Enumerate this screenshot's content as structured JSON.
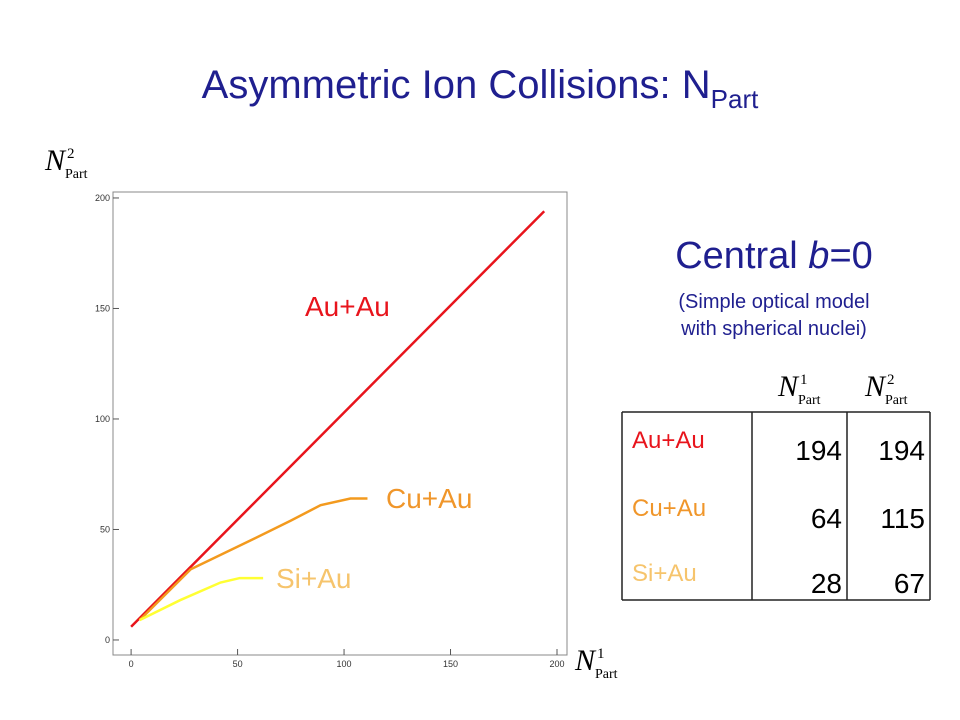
{
  "title": {
    "text": "Asymmetric Ion Collisions: N",
    "sub": "Part"
  },
  "chart_data": {
    "type": "line",
    "x_label": {
      "symbol": "N",
      "sup": "1",
      "sub": "Part"
    },
    "y_label": {
      "symbol": "N",
      "sup": "2",
      "sub": "Part"
    },
    "xlim": [
      -8.5,
      204.7
    ],
    "ylim": [
      -6.8,
      202.7
    ],
    "xticks": [
      0,
      50,
      100,
      150,
      200
    ],
    "yticks": [
      0,
      50,
      100,
      150,
      200
    ],
    "series": [
      {
        "name": "Au+Au",
        "color": "#e8141c",
        "label_color": "#e8141c",
        "x": [
          0,
          194
        ],
        "values": [
          6,
          194
        ]
      },
      {
        "name": "Cu+Au",
        "color": "#f39a1e",
        "label_color": "#f0962a",
        "x": [
          4,
          28,
          56,
          75,
          89,
          103,
          111
        ],
        "values": [
          9,
          32,
          45,
          54,
          61,
          64,
          64
        ]
      },
      {
        "name": "Si+Au",
        "color": "#ffff33",
        "label_color": "#f6c46c",
        "x": [
          4,
          23,
          42,
          51,
          62
        ],
        "values": [
          9,
          18,
          26,
          28,
          28
        ]
      }
    ]
  },
  "side": {
    "heading": {
      "pre": "Central ",
      "italic": "b",
      "post": "=0"
    },
    "note": [
      "(Simple optical model",
      "with spherical nuclei)"
    ]
  },
  "table": {
    "columns": [
      {
        "symbol": "N",
        "sup": "1",
        "sub": "Part"
      },
      {
        "symbol": "N",
        "sup": "2",
        "sub": "Part"
      }
    ],
    "row_colors": [
      "#e8141c",
      "#f0962a",
      "#f6c46c"
    ],
    "rows": [
      [
        "Au+Au",
        194,
        194
      ],
      [
        "Cu+Au",
        64,
        115
      ],
      [
        "Si+Au",
        28,
        67
      ]
    ]
  }
}
